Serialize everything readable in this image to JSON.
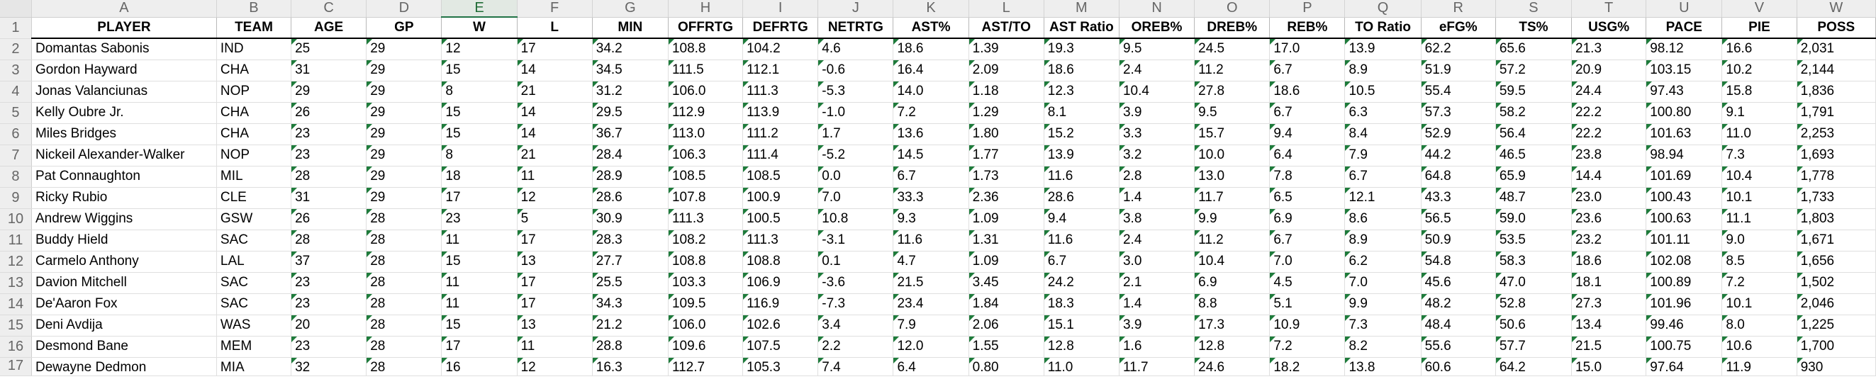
{
  "column_letters": [
    "A",
    "B",
    "C",
    "D",
    "E",
    "F",
    "G",
    "H",
    "I",
    "J",
    "K",
    "L",
    "M",
    "N",
    "O",
    "P",
    "Q",
    "R",
    "S",
    "T",
    "U",
    "V",
    "W"
  ],
  "selected_column": "E",
  "row_numbers": [
    "1",
    "2",
    "3",
    "4",
    "5",
    "6",
    "7",
    "8",
    "9",
    "10",
    "11",
    "12",
    "13",
    "14",
    "15",
    "16",
    "17"
  ],
  "colors": {
    "number_flag": "#1e7b3b",
    "selected_column_header": "#217346",
    "gridline": "#dfdfdf"
  },
  "headers": [
    "PLAYER",
    "TEAM",
    "AGE",
    "GP",
    "W",
    "L",
    "MIN",
    "OFFRTG",
    "DEFRTG",
    "NETRTG",
    "AST%",
    "AST/TO",
    "AST Ratio",
    "OREB%",
    "DREB%",
    "REB%",
    "TO Ratio",
    "eFG%",
    "TS%",
    "USG%",
    "PACE",
    "PIE",
    "POSS"
  ],
  "rows": [
    [
      "Domantas Sabonis",
      "IND",
      "25",
      "29",
      "12",
      "17",
      "34.2",
      "108.8",
      "104.2",
      "4.6",
      "18.6",
      "1.39",
      "19.3",
      "9.5",
      "24.5",
      "17.0",
      "13.9",
      "62.2",
      "65.6",
      "21.3",
      "98.12",
      "16.6",
      "2,031"
    ],
    [
      "Gordon Hayward",
      "CHA",
      "31",
      "29",
      "15",
      "14",
      "34.5",
      "111.5",
      "112.1",
      "-0.6",
      "16.4",
      "2.09",
      "18.6",
      "2.4",
      "11.2",
      "6.7",
      "8.9",
      "51.9",
      "57.2",
      "20.9",
      "103.15",
      "10.2",
      "2,144"
    ],
    [
      "Jonas Valanciunas",
      "NOP",
      "29",
      "29",
      "8",
      "21",
      "31.2",
      "106.0",
      "111.3",
      "-5.3",
      "14.0",
      "1.18",
      "12.3",
      "10.4",
      "27.8",
      "18.6",
      "10.5",
      "55.4",
      "59.5",
      "24.4",
      "97.43",
      "15.8",
      "1,836"
    ],
    [
      "Kelly Oubre Jr.",
      "CHA",
      "26",
      "29",
      "15",
      "14",
      "29.5",
      "112.9",
      "113.9",
      "-1.0",
      "7.2",
      "1.29",
      "8.1",
      "3.9",
      "9.5",
      "6.7",
      "6.3",
      "57.3",
      "58.2",
      "22.2",
      "100.80",
      "9.1",
      "1,791"
    ],
    [
      "Miles Bridges",
      "CHA",
      "23",
      "29",
      "15",
      "14",
      "36.7",
      "113.0",
      "111.2",
      "1.7",
      "13.6",
      "1.80",
      "15.2",
      "3.3",
      "15.7",
      "9.4",
      "8.4",
      "52.9",
      "56.4",
      "22.2",
      "101.63",
      "11.0",
      "2,253"
    ],
    [
      "Nickeil Alexander-Walker",
      "NOP",
      "23",
      "29",
      "8",
      "21",
      "28.4",
      "106.3",
      "111.4",
      "-5.2",
      "14.5",
      "1.77",
      "13.9",
      "3.2",
      "10.0",
      "6.4",
      "7.9",
      "44.2",
      "46.5",
      "23.8",
      "98.94",
      "7.3",
      "1,693"
    ],
    [
      "Pat Connaughton",
      "MIL",
      "28",
      "29",
      "18",
      "11",
      "28.9",
      "108.5",
      "108.5",
      "0.0",
      "6.7",
      "1.73",
      "11.6",
      "2.8",
      "13.0",
      "7.8",
      "6.7",
      "64.8",
      "65.9",
      "14.4",
      "101.69",
      "10.4",
      "1,778"
    ],
    [
      "Ricky Rubio",
      "CLE",
      "31",
      "29",
      "17",
      "12",
      "28.6",
      "107.8",
      "100.9",
      "7.0",
      "33.3",
      "2.36",
      "28.6",
      "1.4",
      "11.7",
      "6.5",
      "12.1",
      "43.3",
      "48.7",
      "23.0",
      "100.43",
      "10.1",
      "1,733"
    ],
    [
      "Andrew Wiggins",
      "GSW",
      "26",
      "28",
      "23",
      "5",
      "30.9",
      "111.3",
      "100.5",
      "10.8",
      "9.3",
      "1.09",
      "9.4",
      "3.8",
      "9.9",
      "6.9",
      "8.6",
      "56.5",
      "59.0",
      "23.6",
      "100.63",
      "11.1",
      "1,803"
    ],
    [
      "Buddy Hield",
      "SAC",
      "28",
      "28",
      "11",
      "17",
      "28.3",
      "108.2",
      "111.3",
      "-3.1",
      "11.6",
      "1.31",
      "11.6",
      "2.4",
      "11.2",
      "6.7",
      "8.9",
      "50.9",
      "53.5",
      "23.2",
      "101.11",
      "9.0",
      "1,671"
    ],
    [
      "Carmelo Anthony",
      "LAL",
      "37",
      "28",
      "15",
      "13",
      "27.7",
      "108.8",
      "108.8",
      "0.1",
      "4.7",
      "1.09",
      "6.7",
      "3.0",
      "10.4",
      "7.0",
      "6.2",
      "54.8",
      "58.3",
      "18.6",
      "102.08",
      "8.5",
      "1,656"
    ],
    [
      "Davion Mitchell",
      "SAC",
      "23",
      "28",
      "11",
      "17",
      "25.5",
      "103.3",
      "106.9",
      "-3.6",
      "21.5",
      "3.45",
      "24.2",
      "2.1",
      "6.9",
      "4.5",
      "7.0",
      "45.6",
      "47.0",
      "18.1",
      "100.89",
      "7.2",
      "1,502"
    ],
    [
      "De'Aaron Fox",
      "SAC",
      "23",
      "28",
      "11",
      "17",
      "34.3",
      "109.5",
      "116.9",
      "-7.3",
      "23.4",
      "1.84",
      "18.3",
      "1.4",
      "8.8",
      "5.1",
      "9.9",
      "48.2",
      "52.8",
      "27.3",
      "101.96",
      "10.1",
      "2,046"
    ],
    [
      "Deni Avdija",
      "WAS",
      "20",
      "28",
      "15",
      "13",
      "21.2",
      "106.0",
      "102.6",
      "3.4",
      "7.9",
      "2.06",
      "15.1",
      "3.9",
      "17.3",
      "10.9",
      "7.3",
      "48.4",
      "50.6",
      "13.4",
      "99.46",
      "8.0",
      "1,225"
    ],
    [
      "Desmond Bane",
      "MEM",
      "23",
      "28",
      "17",
      "11",
      "28.8",
      "109.6",
      "107.5",
      "2.2",
      "12.0",
      "1.55",
      "12.8",
      "1.6",
      "12.8",
      "7.2",
      "8.2",
      "55.6",
      "57.7",
      "21.5",
      "100.75",
      "10.6",
      "1,700"
    ],
    [
      "Dewayne Dedmon",
      "MIA",
      "32",
      "28",
      "16",
      "12",
      "16.3",
      "112.7",
      "105.3",
      "7.4",
      "6.4",
      "0.80",
      "11.0",
      "11.7",
      "24.6",
      "18.2",
      "13.8",
      "60.6",
      "64.2",
      "15.0",
      "97.64",
      "11.9",
      "930"
    ]
  ]
}
